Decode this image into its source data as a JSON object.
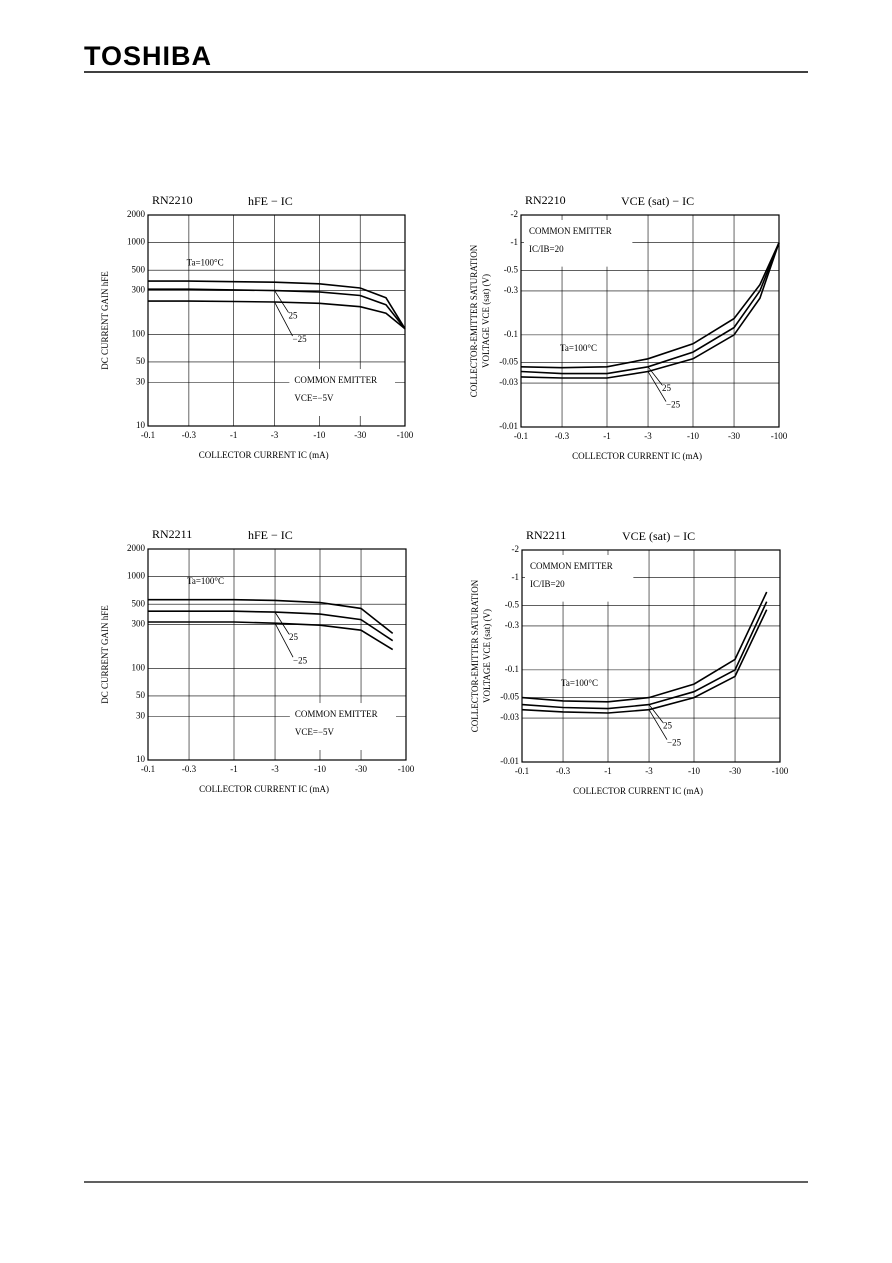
{
  "header": {
    "logo": "TOSHIBA"
  },
  "chart_data": [
    {
      "type": "line",
      "title": "RN2210",
      "subtitle": "hFE − IC",
      "xlabel": "COLLECTOR CURRENT  IC  (mA)",
      "ylabel": [
        "DC CURRENT GAIN  hFE"
      ],
      "annotations": [
        "COMMON EMITTER",
        "VCE=−5V"
      ],
      "log_scale": true,
      "grid": true,
      "x": [
        -0.1,
        -0.3,
        -1,
        -3,
        -10,
        -30,
        -60,
        -100
      ],
      "series": [
        {
          "name": "Ta=100°C",
          "color": "#000000",
          "values": [
            380,
            380,
            375,
            370,
            355,
            320,
            250,
            115
          ]
        },
        {
          "name": "25",
          "color": "#000000",
          "values": [
            310,
            310,
            305,
            300,
            290,
            265,
            210,
            115
          ]
        },
        {
          "name": "−25",
          "color": "#000000",
          "values": [
            230,
            230,
            228,
            225,
            218,
            200,
            170,
            115
          ]
        }
      ],
      "xlim": [
        -0.1,
        -100
      ],
      "xticks": [
        -0.1,
        -0.3,
        -1,
        -3,
        -10,
        -30,
        -100
      ],
      "ylim": [
        10,
        2000
      ],
      "yticks": [
        10,
        30,
        50,
        100,
        300,
        500,
        1000,
        2000
      ]
    },
    {
      "type": "line",
      "title": "RN2210",
      "subtitle": "VCE (sat) − IC",
      "xlabel": "COLLECTOR CURRENT  IC  (mA)",
      "ylabel": [
        "COLLECTOR-EMITTER SATURATION",
        "VOLTAGE  VCE (sat)  (V)"
      ],
      "annotations": [
        "COMMON EMITTER",
        "IC/IB=20"
      ],
      "log_scale": true,
      "grid": true,
      "x": [
        -0.1,
        -0.3,
        -1,
        -3,
        -10,
        -30,
        -60,
        -100
      ],
      "series": [
        {
          "name": "Ta=100°C",
          "color": "#000000",
          "values": [
            -0.045,
            -0.044,
            -0.045,
            -0.055,
            -0.08,
            -0.15,
            -0.35,
            -1
          ]
        },
        {
          "name": "25",
          "color": "#000000",
          "values": [
            -0.04,
            -0.038,
            -0.038,
            -0.045,
            -0.065,
            -0.12,
            -0.3,
            -1
          ]
        },
        {
          "name": "−25",
          "color": "#000000",
          "values": [
            -0.035,
            -0.034,
            -0.034,
            -0.04,
            -0.055,
            -0.1,
            -0.25,
            -1
          ]
        }
      ],
      "xlim": [
        -0.1,
        -100
      ],
      "xticks": [
        -0.1,
        -0.3,
        -1,
        -3,
        -10,
        -30,
        -100
      ],
      "ylim": [
        -0.01,
        -2
      ],
      "yticks": [
        -0.01,
        -0.03,
        -0.05,
        -0.1,
        -0.3,
        -0.5,
        -1,
        -2
      ]
    },
    {
      "type": "line",
      "title": "RN2211",
      "subtitle": "hFE − IC",
      "xlabel": "COLLECTOR CURRENT  IC  (mA)",
      "ylabel": [
        "DC CURRENT GAIN  hFE"
      ],
      "annotations": [
        "COMMON EMITTER",
        "VCE=−5V"
      ],
      "log_scale": true,
      "grid": true,
      "x": [
        -0.1,
        -0.3,
        -1,
        -3,
        -10,
        -30,
        -70
      ],
      "series": [
        {
          "name": "Ta=100°C",
          "color": "#000000",
          "values": [
            560,
            560,
            560,
            550,
            520,
            450,
            240
          ]
        },
        {
          "name": "25",
          "color": "#000000",
          "values": [
            420,
            420,
            420,
            410,
            390,
            340,
            200
          ]
        },
        {
          "name": "−25",
          "color": "#000000",
          "values": [
            320,
            320,
            320,
            310,
            295,
            260,
            160
          ]
        }
      ],
      "xlim": [
        -0.1,
        -100
      ],
      "xticks": [
        -0.1,
        -0.3,
        -1,
        -3,
        -10,
        -30,
        -100
      ],
      "ylim": [
        10,
        2000
      ],
      "yticks": [
        10,
        30,
        50,
        100,
        300,
        500,
        1000,
        2000
      ]
    },
    {
      "type": "line",
      "title": "RN2211",
      "subtitle": "VCE (sat) − IC",
      "xlabel": "COLLECTOR CURRENT  IC  (mA)",
      "ylabel": [
        "COLLECTOR-EMITTER SATURATION",
        "VOLTAGE  VCE (sat)  (V)"
      ],
      "annotations": [
        "COMMON EMITTER",
        "IC/IB=20"
      ],
      "log_scale": true,
      "grid": true,
      "x": [
        -0.1,
        -0.3,
        -1,
        -3,
        -10,
        -30,
        -70
      ],
      "series": [
        {
          "name": "Ta=100°C",
          "color": "#000000",
          "values": [
            -0.05,
            -0.046,
            -0.045,
            -0.05,
            -0.07,
            -0.13,
            -0.7
          ]
        },
        {
          "name": "25",
          "color": "#000000",
          "values": [
            -0.042,
            -0.039,
            -0.038,
            -0.042,
            -0.058,
            -0.1,
            -0.55
          ]
        },
        {
          "name": "−25",
          "color": "#000000",
          "values": [
            -0.037,
            -0.035,
            -0.034,
            -0.037,
            -0.05,
            -0.085,
            -0.45
          ]
        }
      ],
      "xlim": [
        -0.1,
        -100
      ],
      "xticks": [
        -0.1,
        -0.3,
        -1,
        -3,
        -10,
        -30,
        -100
      ],
      "ylim": [
        -0.01,
        -2
      ],
      "yticks": [
        -0.01,
        -0.03,
        -0.05,
        -0.1,
        -0.3,
        -0.5,
        -1,
        -2
      ]
    }
  ]
}
